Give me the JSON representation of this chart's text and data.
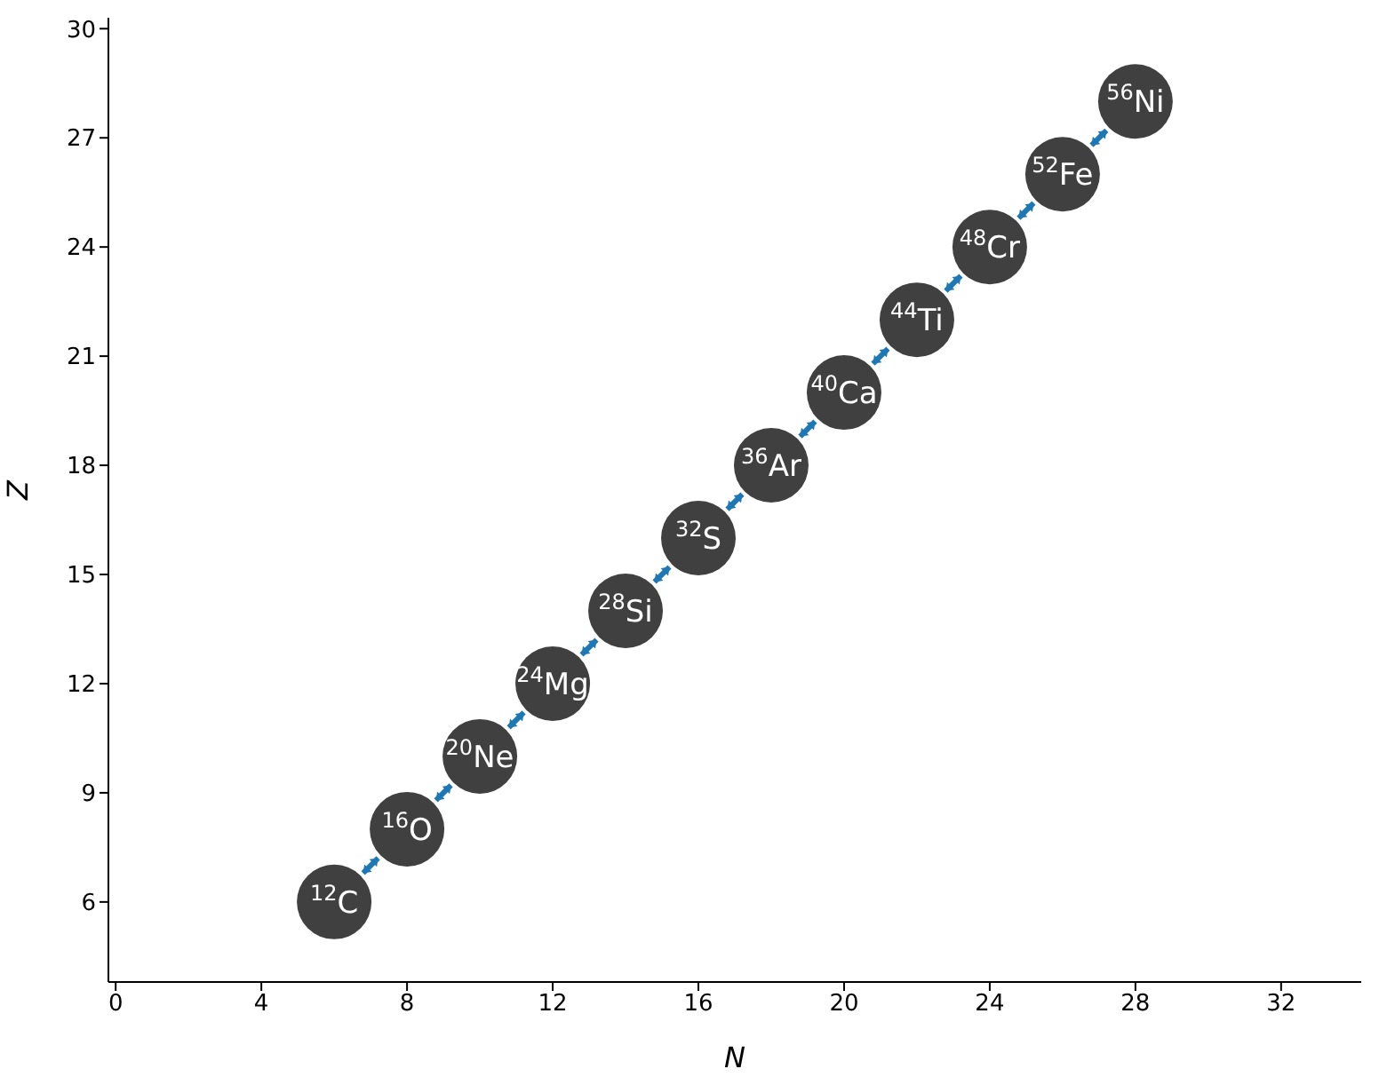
{
  "chart_data": {
    "type": "scatter",
    "xlabel": "N",
    "ylabel": "Z",
    "x": [
      6,
      8,
      10,
      12,
      14,
      16,
      18,
      20,
      22,
      24,
      26,
      28
    ],
    "values": [
      6,
      8,
      10,
      12,
      14,
      16,
      18,
      20,
      22,
      24,
      26,
      28
    ],
    "annotations": [
      {
        "text": "$^{12}$C",
        "x": 6,
        "y": 6
      },
      {
        "text": "$^{16}$O",
        "x": 8,
        "y": 8
      },
      {
        "text": "$^{20}$Ne",
        "x": 10,
        "y": 10
      },
      {
        "text": "$^{24}$Mg",
        "x": 12,
        "y": 12
      },
      {
        "text": "$^{28}$Si",
        "x": 14,
        "y": 14
      },
      {
        "text": "$^{32}$S",
        "x": 16,
        "y": 16
      },
      {
        "text": "$^{36}$Ar",
        "x": 18,
        "y": 18
      },
      {
        "text": "$^{40}$Ca",
        "x": 20,
        "y": 20
      },
      {
        "text": "$^{44}$Ti",
        "x": 22,
        "y": 22
      },
      {
        "text": "$^{48}$Cr",
        "x": 24,
        "y": 24
      },
      {
        "text": "$^{52}$Fe",
        "x": 26,
        "y": 26
      },
      {
        "text": "$^{56}$Ni",
        "x": 28,
        "y": 28
      }
    ],
    "color": "#404040",
    "marker": "circle",
    "grid": false,
    "xlim": [
      -0.2,
      34.2
    ],
    "ylim": [
      3.8,
      30.3
    ],
    "xticks": [
      0,
      4,
      8,
      12,
      16,
      20,
      24,
      28,
      32
    ],
    "yticks": [
      6,
      9,
      12,
      15,
      18,
      21,
      24,
      27,
      30
    ]
  }
}
